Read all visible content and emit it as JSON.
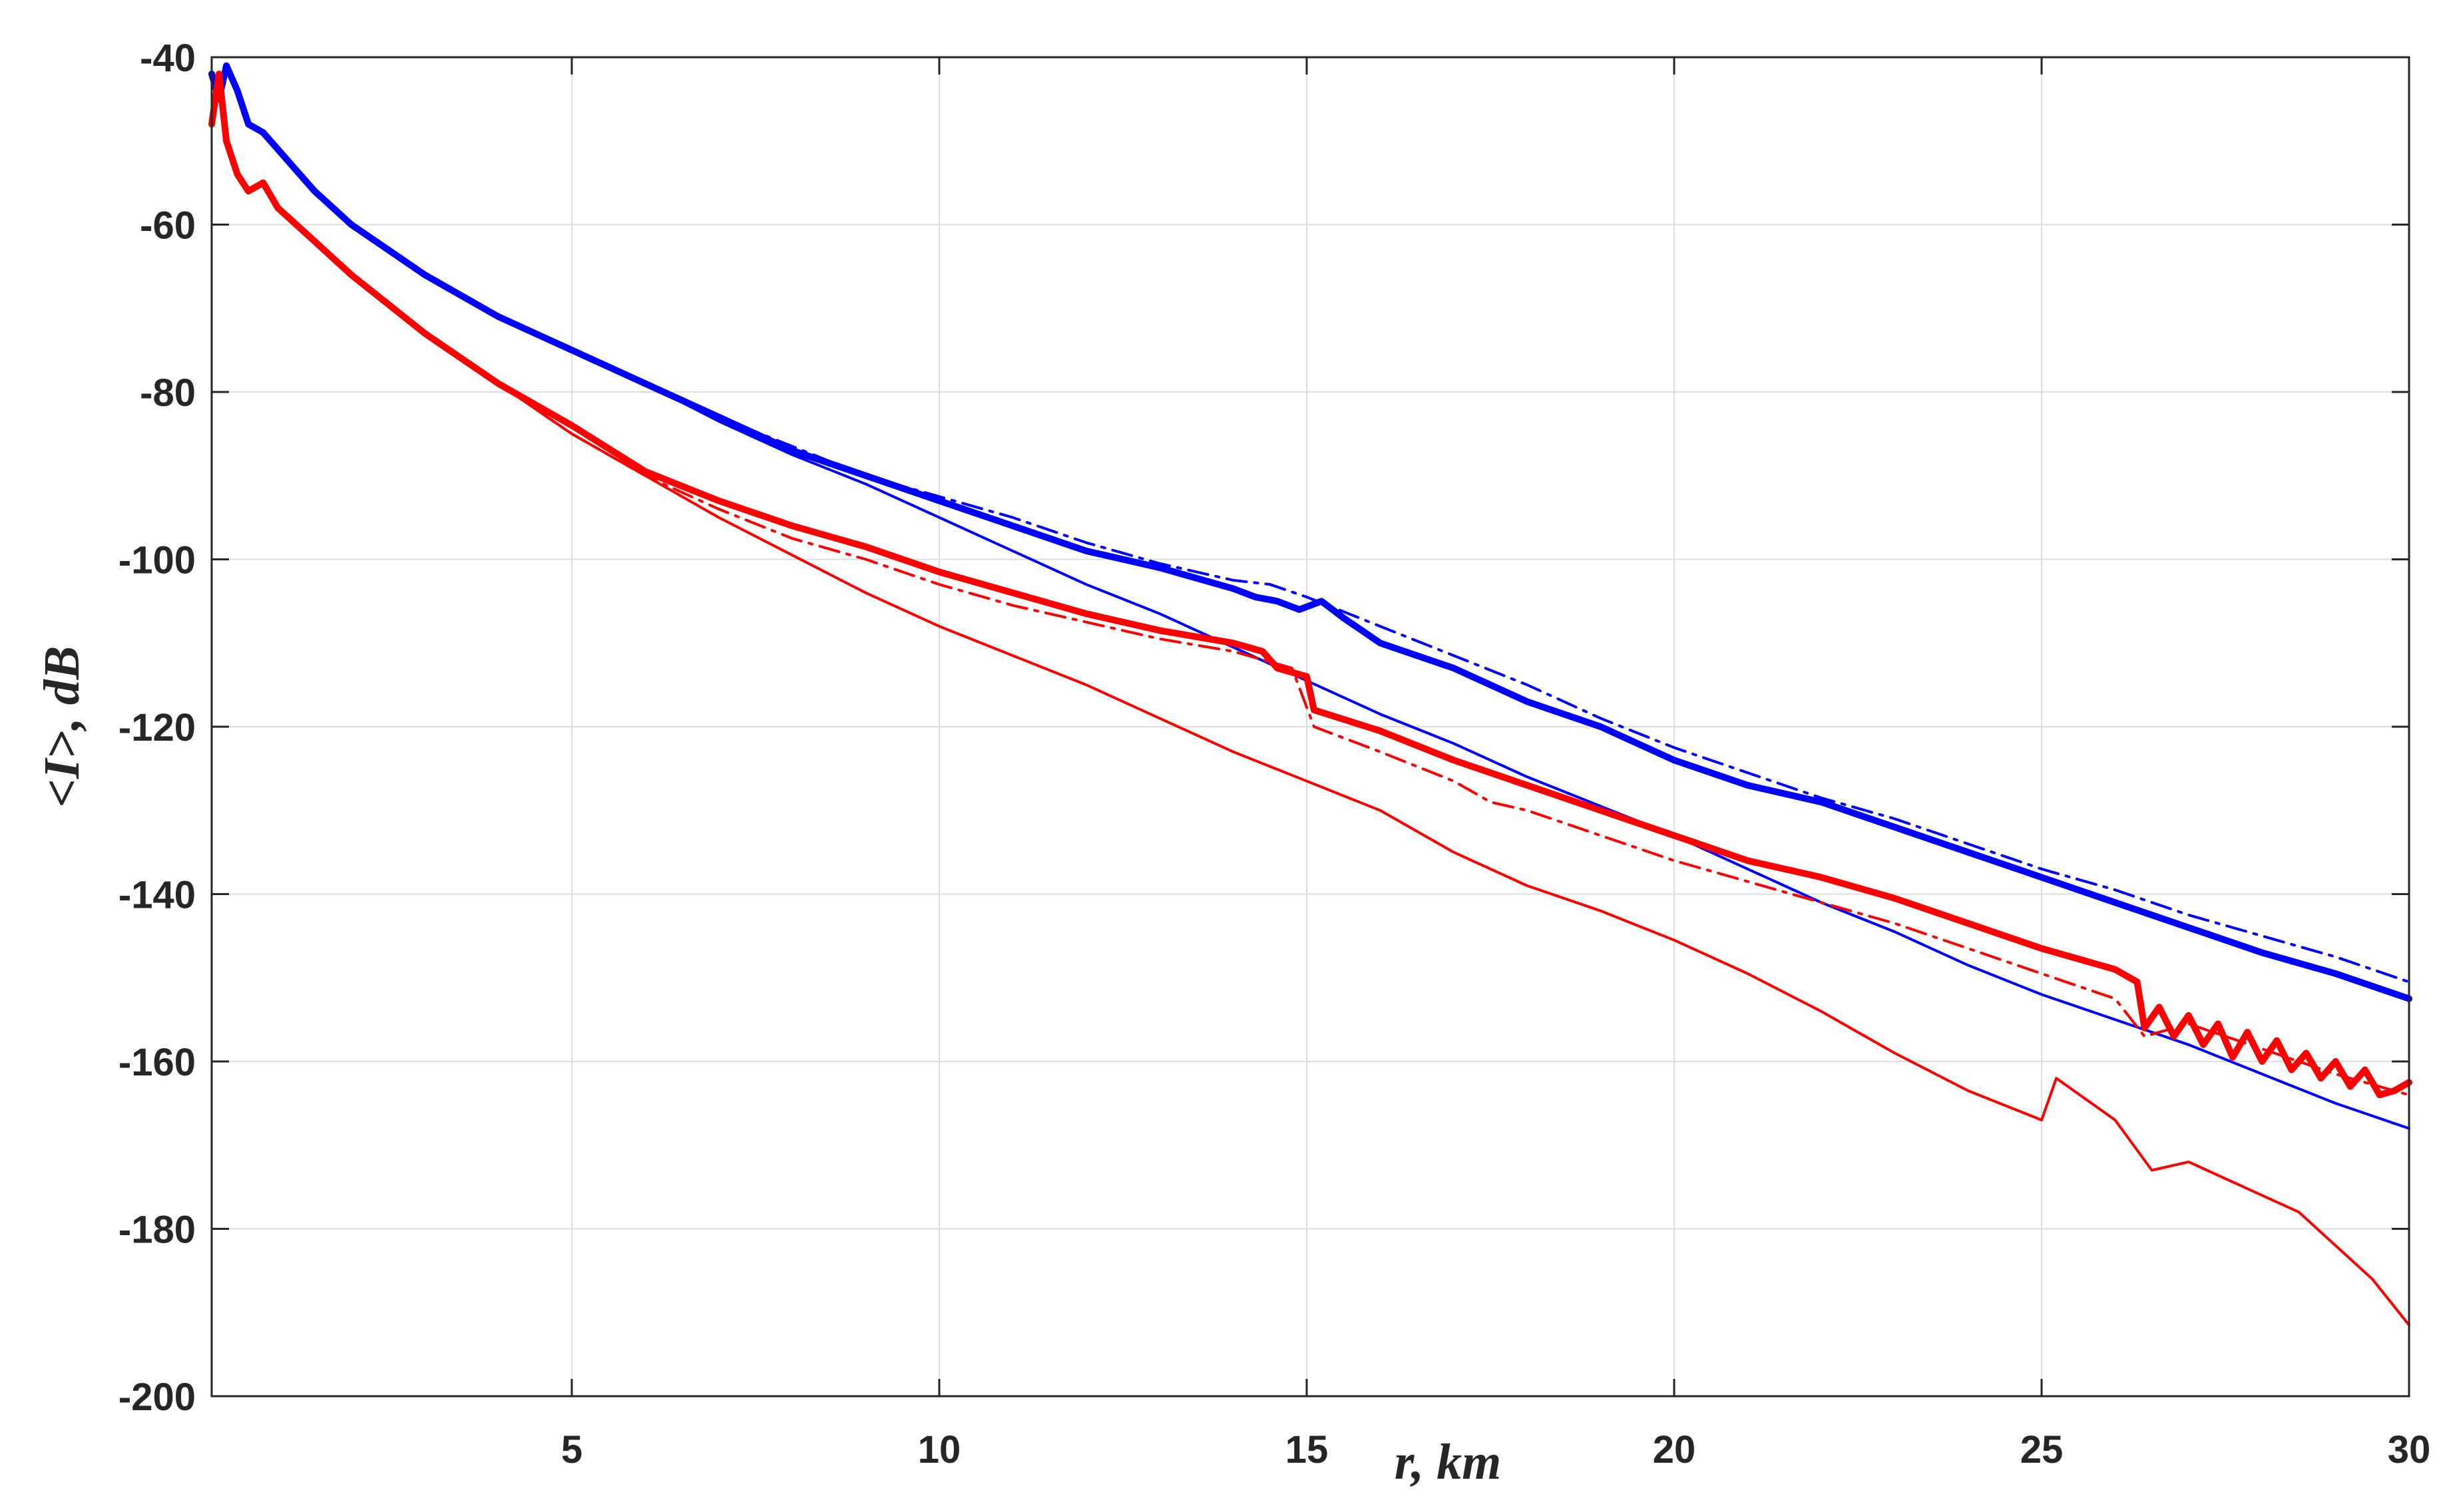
{
  "chart_data": {
    "type": "line",
    "xlabel": "r, km",
    "ylabel": "<I>, dB",
    "xlim": [
      0.1,
      30
    ],
    "ylim": [
      -200,
      -40
    ],
    "xticks": [
      5,
      10,
      15,
      20,
      25,
      30
    ],
    "yticks": [
      -40,
      -60,
      -80,
      -100,
      -120,
      -140,
      -160,
      -180,
      -200
    ],
    "grid": true,
    "legend": "none",
    "series": [
      {
        "color": "#0000ff",
        "style": "solid-thick",
        "x": [
          0.1,
          0.2,
          0.3,
          0.45,
          0.6,
          0.8,
          1.0,
          1.2,
          1.5,
          2,
          3,
          4,
          5,
          6,
          7,
          8,
          9,
          10,
          11,
          12,
          13,
          14,
          14.3,
          14.6,
          14.9,
          15.2,
          15.5,
          16,
          17,
          18,
          19,
          20,
          21,
          22,
          23,
          24,
          25,
          26,
          27,
          28,
          29,
          30
        ],
        "y": [
          -42,
          -45,
          -41,
          -44,
          -48,
          -49,
          -51,
          -53,
          -56,
          -60,
          -66,
          -71,
          -75,
          -79,
          -83,
          -87,
          -90,
          -93,
          -96,
          -99,
          -101,
          -103.5,
          -104.5,
          -105,
          -106,
          -105,
          -107,
          -110,
          -113,
          -117,
          -120,
          -124,
          -127,
          -129,
          -132,
          -135,
          -138,
          -141,
          -144,
          -147,
          -149.5,
          -152.5
        ]
      },
      {
        "color": "#0000ff",
        "style": "dashdot-thin",
        "x": [
          0.1,
          0.2,
          0.3,
          0.45,
          0.6,
          0.8,
          1.0,
          1.5,
          2,
          3,
          4,
          5,
          6,
          7,
          8,
          9,
          10,
          11,
          12,
          13,
          14,
          14.5,
          15,
          16,
          17,
          18,
          19,
          20,
          21,
          22,
          23,
          24,
          25,
          26,
          27,
          28,
          29,
          30
        ],
        "y": [
          -42,
          -45,
          -41,
          -44,
          -48,
          -49,
          -51,
          -56,
          -60,
          -66,
          -71,
          -75,
          -79,
          -83,
          -86.5,
          -90,
          -92.5,
          -95,
          -98,
          -100.5,
          -102.5,
          -103,
          -104.5,
          -108,
          -111.5,
          -115,
          -119,
          -122.5,
          -125.5,
          -128.5,
          -131,
          -134,
          -137,
          -139.5,
          -142.5,
          -145,
          -147.5,
          -150.5
        ]
      },
      {
        "color": "#0000ff",
        "style": "solid-thin",
        "x": [
          0.1,
          0.2,
          0.3,
          0.45,
          0.6,
          0.8,
          1.0,
          1.5,
          2,
          3,
          4,
          5,
          6,
          7,
          8,
          9,
          10,
          11,
          12,
          13,
          14,
          15,
          16,
          17,
          18,
          19,
          20,
          21,
          22,
          23,
          24,
          25,
          26,
          27,
          28,
          29,
          30
        ],
        "y": [
          -42,
          -45,
          -41,
          -44,
          -48,
          -49,
          -51,
          -56,
          -60,
          -66,
          -71,
          -75,
          -79,
          -83.5,
          -87.5,
          -91,
          -95,
          -99,
          -103,
          -106.5,
          -110.5,
          -114.5,
          -118.5,
          -122,
          -126,
          -129.5,
          -133,
          -137,
          -141,
          -144.5,
          -148.5,
          -152,
          -155,
          -158,
          -161.5,
          -165,
          -168
        ]
      },
      {
        "color": "#ff0000",
        "style": "solid-thick",
        "x": [
          0.1,
          0.2,
          0.3,
          0.45,
          0.6,
          0.8,
          1.0,
          1.5,
          2,
          3,
          4,
          5,
          6,
          7,
          8,
          9,
          10,
          11,
          12,
          13,
          14,
          14.4,
          14.6,
          15,
          15.1,
          16,
          17,
          18,
          19,
          20,
          21,
          22,
          23,
          24,
          25,
          26,
          26.3,
          26.4,
          26.6,
          26.8,
          27,
          27.2,
          27.4,
          27.6,
          27.8,
          28,
          28.2,
          28.4,
          28.6,
          28.8,
          29,
          29.2,
          29.4,
          29.6,
          29.8,
          30
        ],
        "y": [
          -48,
          -42,
          -50,
          -54,
          -56,
          -55,
          -58,
          -62,
          -66,
          -73,
          -79,
          -84,
          -89.5,
          -93,
          -96,
          -98.5,
          -101.5,
          -104,
          -106.5,
          -108.5,
          -110,
          -111,
          -113,
          -114,
          -118,
          -120.5,
          -124,
          -127,
          -130,
          -133,
          -136,
          -138,
          -140.5,
          -143.5,
          -146.5,
          -149,
          -150.5,
          -156,
          -153.5,
          -157,
          -154.5,
          -158,
          -155.5,
          -159.5,
          -156.5,
          -160,
          -157.5,
          -161,
          -159,
          -162,
          -160,
          -163,
          -161,
          -164,
          -163.5,
          -162.5
        ]
      },
      {
        "color": "#ff0000",
        "style": "dashdot-thin",
        "x": [
          0.1,
          0.2,
          0.3,
          0.45,
          0.6,
          0.8,
          1.0,
          1.5,
          2,
          3,
          4,
          5,
          6,
          7,
          8,
          9,
          10,
          11,
          12,
          13,
          14,
          14.8,
          15.1,
          16,
          17,
          17.5,
          18,
          19,
          20,
          21,
          22,
          23,
          24,
          25,
          26,
          26.4,
          27,
          28,
          29,
          30
        ],
        "y": [
          -48,
          -42,
          -50,
          -54,
          -56,
          -55,
          -58,
          -62,
          -66,
          -73,
          -79,
          -85,
          -90,
          -94,
          -97.5,
          -100,
          -103,
          -105.5,
          -107.5,
          -109.5,
          -111,
          -113,
          -120,
          -123,
          -126.5,
          -129,
          -130,
          -133,
          -136,
          -138.5,
          -141,
          -143.5,
          -146.5,
          -149.5,
          -152.5,
          -157,
          -155.5,
          -158.5,
          -161.5,
          -164
        ]
      },
      {
        "color": "#ff0000",
        "style": "solid-thin",
        "x": [
          0.1,
          0.2,
          0.3,
          0.45,
          0.6,
          0.8,
          1.0,
          1.5,
          2,
          3,
          4,
          5,
          6,
          7,
          8,
          9,
          10,
          11,
          12,
          13,
          14,
          15,
          16,
          17,
          18,
          19,
          20,
          21,
          22,
          23,
          24,
          25,
          25.2,
          26,
          26.5,
          27,
          28,
          28.5,
          29,
          29.5,
          30
        ],
        "y": [
          -48,
          -42,
          -50,
          -54,
          -56,
          -55,
          -58,
          -62,
          -66,
          -73,
          -79,
          -85,
          -90,
          -95,
          -99.5,
          -104,
          -108,
          -111.5,
          -115,
          -119,
          -123,
          -126.5,
          -130,
          -135,
          -139,
          -142,
          -145.5,
          -149.5,
          -154,
          -159,
          -163.5,
          -167,
          -162,
          -167,
          -173,
          -172,
          -176,
          -178,
          -182,
          -186,
          -191.5
        ]
      }
    ]
  }
}
